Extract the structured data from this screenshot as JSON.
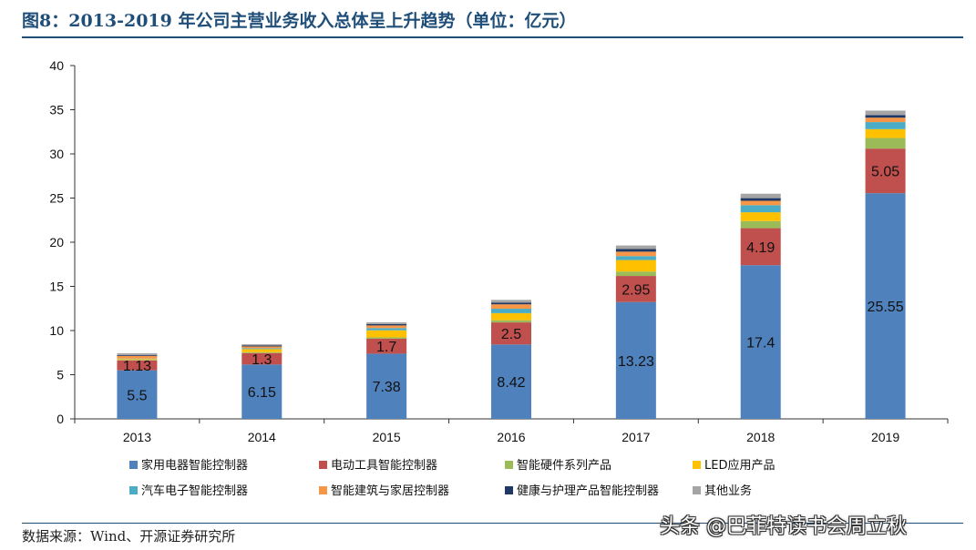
{
  "header": {
    "title": "图8：2013-2019 年公司主营业务收入总体呈上升趋势（单位：亿元）"
  },
  "footer": {
    "source": "数据来源：Wind、开源证券研究所",
    "watermark": "头条 @巴菲特读书会周立秋"
  },
  "chart_data": {
    "type": "bar",
    "stacked": true,
    "categories": [
      "2013",
      "2014",
      "2015",
      "2016",
      "2017",
      "2018",
      "2019"
    ],
    "ylim": [
      0,
      40
    ],
    "yticks": [
      0,
      5,
      10,
      15,
      20,
      25,
      30,
      35,
      40
    ],
    "legend_position": "bottom",
    "grid": false,
    "series": [
      {
        "name": "家用电器智能控制器",
        "color": "#4f81bd",
        "values": [
          5.5,
          6.15,
          7.38,
          8.42,
          13.23,
          17.4,
          25.55
        ],
        "labeled": true
      },
      {
        "name": "电动工具智能控制器",
        "color": "#c0504d",
        "values": [
          1.13,
          1.3,
          1.7,
          2.5,
          2.95,
          4.19,
          5.05
        ],
        "labeled": true
      },
      {
        "name": "智能硬件系列产品",
        "color": "#9bbb59",
        "values": [
          0.05,
          0.1,
          0.15,
          0.25,
          0.5,
          0.8,
          1.2
        ]
      },
      {
        "name": "LED应用产品",
        "color": "#ffc000",
        "values": [
          0.1,
          0.35,
          0.8,
          0.8,
          1.3,
          1.0,
          1.0
        ]
      },
      {
        "name": "汽车电子智能控制器",
        "color": "#4bacc6",
        "values": [
          0.05,
          0.1,
          0.25,
          0.5,
          0.45,
          0.8,
          0.8
        ]
      },
      {
        "name": "智能建筑与家居控制器",
        "color": "#f79646",
        "values": [
          0.3,
          0.2,
          0.3,
          0.5,
          0.5,
          0.5,
          0.5
        ]
      },
      {
        "name": "健康与护理产品智能控制器",
        "color": "#1f3864",
        "values": [
          0.1,
          0.1,
          0.15,
          0.2,
          0.3,
          0.3,
          0.3
        ]
      },
      {
        "name": "其他业务",
        "color": "#a5a5a5",
        "values": [
          0.2,
          0.15,
          0.2,
          0.3,
          0.4,
          0.5,
          0.5
        ]
      }
    ]
  }
}
